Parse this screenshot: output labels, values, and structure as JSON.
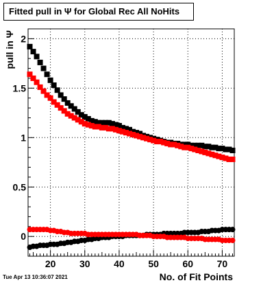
{
  "title": "Fitted pull in Ψ  for Global Rec All NoHits",
  "timestamp": "Tue Apr 13 10:36:07 2021",
  "chart_data": {
    "type": "scatter",
    "xlabel": "No. of Fit Points",
    "ylabel": "pull in Ψ",
    "xlim": [
      13.5,
      73.5
    ],
    "ylim": [
      -0.2,
      2.1
    ],
    "x_ticks": [
      20,
      30,
      40,
      50,
      60,
      70
    ],
    "y_ticks": [
      0,
      0.5,
      1,
      1.5,
      2
    ],
    "x_tick_labels": [
      "20",
      "30",
      "40",
      "50",
      "60",
      "70"
    ],
    "y_tick_labels": [
      "0",
      "0.5",
      "1",
      "1.5",
      "2"
    ],
    "grid": true,
    "x": [
      14,
      15,
      16,
      17,
      18,
      19,
      20,
      21,
      22,
      23,
      24,
      25,
      26,
      27,
      28,
      29,
      30,
      31,
      32,
      33,
      34,
      35,
      36,
      37,
      38,
      39,
      40,
      41,
      42,
      43,
      44,
      45,
      46,
      47,
      48,
      49,
      50,
      51,
      52,
      53,
      54,
      55,
      56,
      57,
      58,
      59,
      60,
      61,
      62,
      63,
      64,
      65,
      66,
      67,
      68,
      69,
      70,
      71,
      72,
      73
    ],
    "series": [
      {
        "marker": "square",
        "color": "#000000",
        "values": [
          1.92,
          1.87,
          1.82,
          1.76,
          1.7,
          1.64,
          1.58,
          1.53,
          1.48,
          1.43,
          1.39,
          1.35,
          1.32,
          1.29,
          1.26,
          1.23,
          1.21,
          1.19,
          1.17,
          1.16,
          1.15,
          1.15,
          1.15,
          1.15,
          1.14,
          1.13,
          1.12,
          1.1,
          1.09,
          1.08,
          1.06,
          1.05,
          1.04,
          1.02,
          1.01,
          1.0,
          0.99,
          0.98,
          0.97,
          0.96,
          0.95,
          0.95,
          0.94,
          0.94,
          0.93,
          0.93,
          0.93,
          0.92,
          0.92,
          0.92,
          0.92,
          0.91,
          0.91,
          0.9,
          0.9,
          0.89,
          0.89,
          0.88,
          0.88,
          0.87
        ]
      },
      {
        "marker": "square",
        "color": "#ff0000",
        "values": [
          1.64,
          1.6,
          1.56,
          1.51,
          1.47,
          1.43,
          1.4,
          1.36,
          1.33,
          1.3,
          1.27,
          1.24,
          1.22,
          1.2,
          1.18,
          1.16,
          1.14,
          1.13,
          1.12,
          1.11,
          1.11,
          1.1,
          1.1,
          1.09,
          1.09,
          1.08,
          1.07,
          1.06,
          1.05,
          1.04,
          1.03,
          1.02,
          1.01,
          1.0,
          0.99,
          0.98,
          0.97,
          0.96,
          0.96,
          0.95,
          0.94,
          0.93,
          0.93,
          0.92,
          0.91,
          0.9,
          0.9,
          0.89,
          0.88,
          0.87,
          0.86,
          0.85,
          0.84,
          0.83,
          0.82,
          0.81,
          0.8,
          0.79,
          0.78,
          0.78
        ]
      },
      {
        "marker": "circle",
        "color": "#000000",
        "values": [
          -0.11,
          -0.1,
          -0.1,
          -0.09,
          -0.09,
          -0.09,
          -0.08,
          -0.08,
          -0.08,
          -0.07,
          -0.07,
          -0.06,
          -0.06,
          -0.05,
          -0.05,
          -0.04,
          -0.04,
          -0.03,
          -0.03,
          -0.02,
          -0.02,
          -0.01,
          -0.01,
          -0.01,
          0.0,
          0.0,
          0.0,
          0.0,
          0.01,
          0.01,
          0.01,
          0.01,
          0.01,
          0.01,
          0.02,
          0.02,
          0.02,
          0.02,
          0.02,
          0.03,
          0.03,
          0.03,
          0.03,
          0.03,
          0.03,
          0.04,
          0.04,
          0.04,
          0.04,
          0.04,
          0.05,
          0.05,
          0.05,
          0.06,
          0.06,
          0.06,
          0.07,
          0.07,
          0.07,
          0.07
        ]
      },
      {
        "marker": "circle",
        "color": "#ff0000",
        "values": [
          0.07,
          0.07,
          0.07,
          0.07,
          0.07,
          0.07,
          0.06,
          0.06,
          0.05,
          0.05,
          0.04,
          0.04,
          0.03,
          0.03,
          0.03,
          0.03,
          0.03,
          0.02,
          0.02,
          0.02,
          0.02,
          0.02,
          0.02,
          0.02,
          0.02,
          0.02,
          0.02,
          0.02,
          0.02,
          0.02,
          0.02,
          0.02,
          0.01,
          0.01,
          0.01,
          0.01,
          0.0,
          0.0,
          0.0,
          0.0,
          -0.01,
          -0.01,
          -0.01,
          -0.01,
          -0.01,
          -0.01,
          -0.02,
          -0.02,
          -0.02,
          -0.02,
          -0.02,
          -0.03,
          -0.03,
          -0.03,
          -0.03,
          -0.03,
          -0.04,
          -0.04,
          -0.04,
          -0.04
        ]
      }
    ]
  }
}
